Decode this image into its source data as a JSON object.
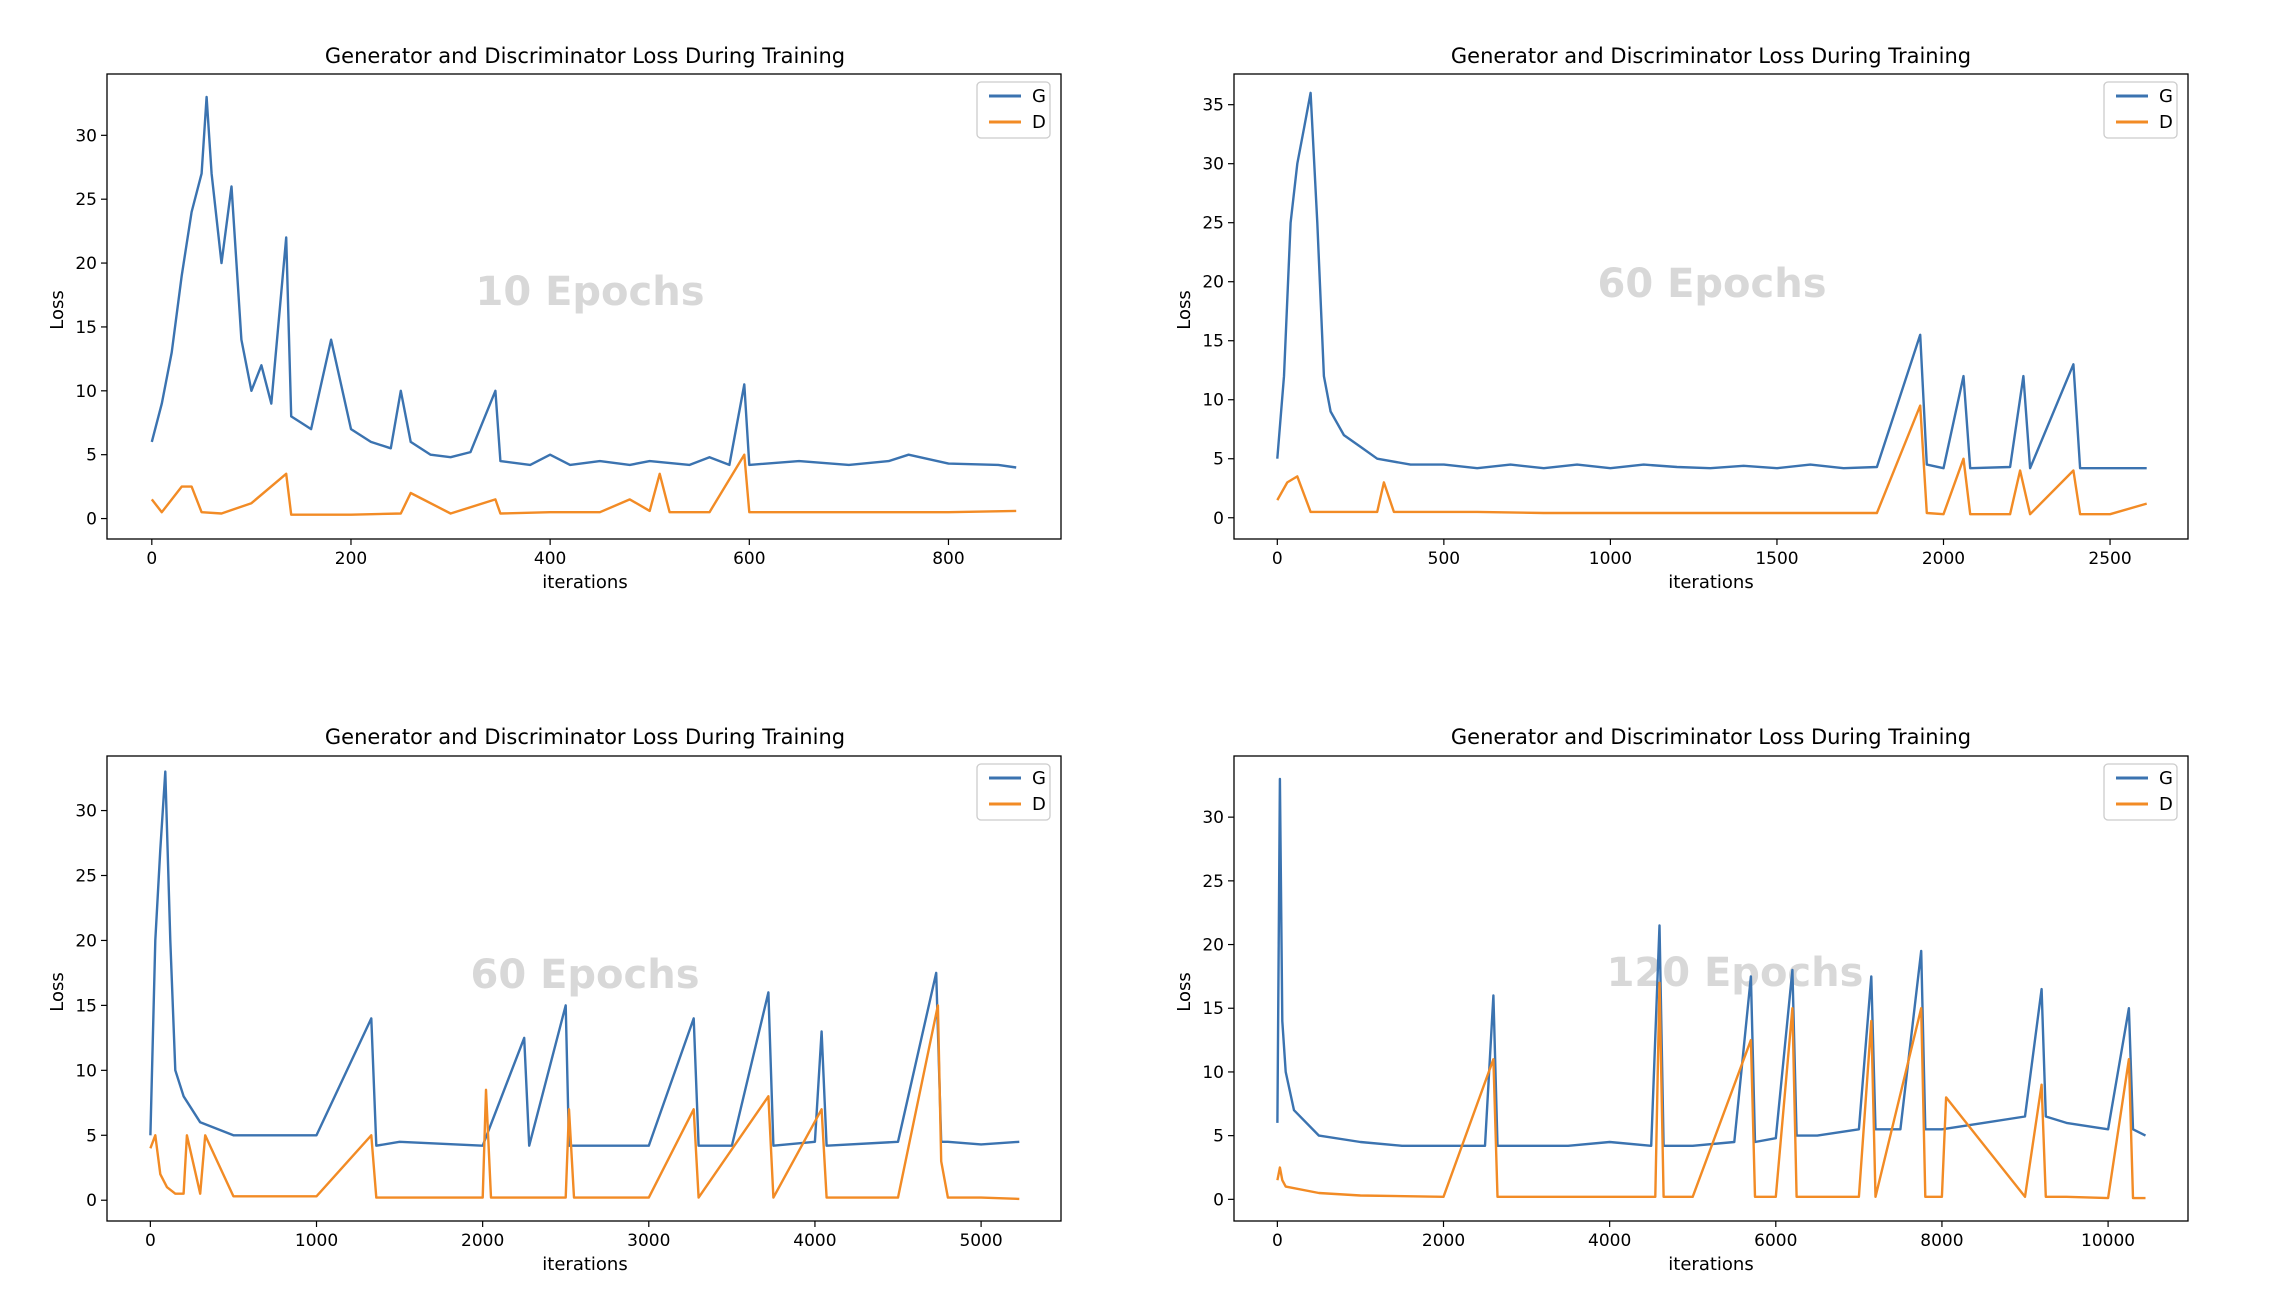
{
  "colors": {
    "G": "#3b73b0",
    "D": "#f28b25",
    "watermark": "#d8d8d8"
  },
  "chart_data": [
    {
      "type": "line",
      "title": "Generator and Discriminator Loss During Training",
      "xlabel": "iterations",
      "ylabel": "Loss",
      "watermark": "10 Epochs",
      "xlim": [
        -45,
        913
      ],
      "ylim": [
        -1.6,
        34.8
      ],
      "xticks": [
        0,
        200,
        400,
        600,
        800
      ],
      "yticks": [
        0,
        5,
        10,
        15,
        20,
        25,
        30
      ],
      "legend": "top-right",
      "grid": false,
      "series": [
        {
          "name": "G",
          "x": [
            0,
            10,
            20,
            30,
            40,
            50,
            55,
            60,
            70,
            80,
            90,
            100,
            110,
            120,
            135,
            140,
            150,
            160,
            180,
            200,
            220,
            240,
            250,
            260,
            280,
            300,
            320,
            345,
            350,
            380,
            400,
            420,
            450,
            480,
            500,
            540,
            560,
            580,
            595,
            600,
            650,
            700,
            740,
            760,
            800,
            850,
            868
          ],
          "y": [
            6,
            9,
            13,
            19,
            24,
            27,
            33,
            27,
            20,
            26,
            14,
            10,
            12,
            9,
            22,
            8,
            7.5,
            7,
            14,
            7,
            6,
            5.5,
            10,
            6,
            5,
            4.8,
            5.2,
            10,
            4.5,
            4.2,
            5,
            4.2,
            4.5,
            4.2,
            4.5,
            4.2,
            4.8,
            4.2,
            10.5,
            4.2,
            4.5,
            4.2,
            4.5,
            5,
            4.3,
            4.2,
            4
          ]
        },
        {
          "name": "D",
          "x": [
            0,
            10,
            30,
            40,
            50,
            70,
            100,
            135,
            140,
            150,
            200,
            250,
            260,
            300,
            345,
            350,
            400,
            450,
            480,
            500,
            510,
            520,
            560,
            595,
            600,
            650,
            700,
            800,
            868
          ],
          "y": [
            1.5,
            0.5,
            2.5,
            2.5,
            0.5,
            0.4,
            1.2,
            3.5,
            0.3,
            0.3,
            0.3,
            0.4,
            2,
            0.4,
            1.5,
            0.4,
            0.5,
            0.5,
            1.5,
            0.6,
            3.5,
            0.5,
            0.5,
            5,
            0.5,
            0.5,
            0.5,
            0.5,
            0.6
          ]
        }
      ]
    },
    {
      "type": "line",
      "title": "Generator and Discriminator Loss During Training",
      "xlabel": "iterations",
      "ylabel": "Loss",
      "watermark": "60 Epochs",
      "xlim": [
        -130,
        2734
      ],
      "ylim": [
        -1.8,
        37.6
      ],
      "xticks": [
        0,
        500,
        1000,
        1500,
        2000,
        2500
      ],
      "yticks": [
        0,
        5,
        10,
        15,
        20,
        25,
        30,
        35
      ],
      "legend": "top-right",
      "grid": false,
      "series": [
        {
          "name": "G",
          "x": [
            0,
            20,
            40,
            60,
            80,
            100,
            120,
            140,
            160,
            200,
            250,
            300,
            400,
            500,
            600,
            700,
            800,
            900,
            1000,
            1100,
            1200,
            1300,
            1400,
            1500,
            1600,
            1700,
            1800,
            1930,
            1950,
            2000,
            2060,
            2080,
            2200,
            2240,
            2260,
            2390,
            2410,
            2500,
            2610
          ],
          "y": [
            5,
            12,
            25,
            30,
            33,
            36,
            25,
            12,
            9,
            7,
            6,
            5,
            4.5,
            4.5,
            4.2,
            4.5,
            4.2,
            4.5,
            4.2,
            4.5,
            4.3,
            4.2,
            4.4,
            4.2,
            4.5,
            4.2,
            4.3,
            15.5,
            4.5,
            4.2,
            12,
            4.2,
            4.3,
            12,
            4.2,
            13,
            4.2,
            4.2,
            4.2
          ]
        },
        {
          "name": "D",
          "x": [
            0,
            30,
            60,
            100,
            200,
            300,
            320,
            350,
            400,
            500,
            600,
            800,
            1000,
            1200,
            1400,
            1600,
            1800,
            1930,
            1950,
            2000,
            2060,
            2080,
            2200,
            2230,
            2260,
            2390,
            2410,
            2500,
            2610
          ],
          "y": [
            1.5,
            3,
            3.5,
            0.5,
            0.5,
            0.5,
            3,
            0.5,
            0.5,
            0.5,
            0.5,
            0.4,
            0.4,
            0.4,
            0.4,
            0.4,
            0.4,
            9.5,
            0.4,
            0.3,
            5,
            0.3,
            0.3,
            4,
            0.3,
            4,
            0.3,
            0.3,
            1.2
          ]
        }
      ]
    },
    {
      "type": "line",
      "title": "Generator and Discriminator Loss During Training",
      "xlabel": "iterations",
      "ylabel": "Loss",
      "watermark": "60 Epochs",
      "xlim": [
        -261,
        5481
      ],
      "ylim": [
        -1.6,
        34.2
      ],
      "xticks": [
        0,
        1000,
        2000,
        3000,
        4000,
        5000
      ],
      "yticks": [
        0,
        5,
        10,
        15,
        20,
        25,
        30
      ],
      "legend": "top-right",
      "grid": false,
      "series": [
        {
          "name": "G",
          "x": [
            0,
            30,
            60,
            90,
            120,
            150,
            200,
            300,
            500,
            1000,
            1330,
            1360,
            1500,
            2000,
            2250,
            2280,
            2500,
            2520,
            3000,
            3270,
            3300,
            3500,
            3720,
            3750,
            4000,
            4040,
            4070,
            4500,
            4730,
            4760,
            4800,
            5000,
            5230
          ],
          "y": [
            5,
            20,
            27,
            33,
            20,
            10,
            8,
            6,
            5,
            5,
            14,
            4.2,
            4.5,
            4.2,
            12.5,
            4.2,
            15,
            4.2,
            4.2,
            14,
            4.2,
            4.2,
            16,
            4.2,
            4.5,
            13,
            4.2,
            4.5,
            17.5,
            4.5,
            4.5,
            4.3,
            4.5
          ]
        },
        {
          "name": "D",
          "x": [
            0,
            30,
            60,
            100,
            150,
            200,
            220,
            300,
            330,
            500,
            1000,
            1330,
            1360,
            2000,
            2020,
            2050,
            2500,
            2520,
            2550,
            3000,
            3270,
            3300,
            3720,
            3750,
            4040,
            4070,
            4500,
            4740,
            4760,
            4800,
            5000,
            5230
          ],
          "y": [
            4,
            5,
            2,
            1,
            0.5,
            0.5,
            5,
            0.5,
            5,
            0.3,
            0.3,
            5,
            0.2,
            0.2,
            8.5,
            0.2,
            0.2,
            7,
            0.2,
            0.2,
            7,
            0.2,
            8,
            0.2,
            7,
            0.2,
            0.2,
            15,
            3,
            0.2,
            0.2,
            0.1
          ]
        }
      ]
    },
    {
      "type": "line",
      "title": "Generator and Discriminator Loss During Training",
      "xlabel": "iterations",
      "ylabel": "Loss",
      "watermark": "120 Epochs",
      "xlim": [
        -522,
        10962
      ],
      "ylim": [
        -1.7,
        34.8
      ],
      "xticks": [
        0,
        2000,
        4000,
        6000,
        8000,
        10000
      ],
      "yticks": [
        0,
        5,
        10,
        15,
        20,
        25,
        30
      ],
      "legend": "top-right",
      "grid": false,
      "series": [
        {
          "name": "G",
          "x": [
            0,
            30,
            60,
            100,
            200,
            500,
            1000,
            1500,
            2000,
            2500,
            2600,
            2650,
            3000,
            3500,
            4000,
            4500,
            4600,
            4650,
            5000,
            5500,
            5700,
            5750,
            6000,
            6200,
            6250,
            6500,
            7000,
            7150,
            7200,
            7500,
            7750,
            7800,
            8000,
            8500,
            9000,
            9200,
            9250,
            9500,
            10000,
            10250,
            10300,
            10450
          ],
          "y": [
            6,
            33,
            14,
            10,
            7,
            5,
            4.5,
            4.2,
            4.2,
            4.2,
            16,
            4.2,
            4.2,
            4.2,
            4.5,
            4.2,
            21.5,
            4.2,
            4.2,
            4.5,
            17.5,
            4.5,
            4.8,
            18,
            5,
            5,
            5.5,
            17.5,
            5.5,
            5.5,
            19.5,
            5.5,
            5.5,
            6,
            6.5,
            16.5,
            6.5,
            6,
            5.5,
            15,
            5.5,
            5
          ]
        },
        {
          "name": "D",
          "x": [
            0,
            30,
            60,
            100,
            500,
            1000,
            2000,
            2600,
            2650,
            3000,
            3500,
            4000,
            4550,
            4600,
            4650,
            5000,
            5700,
            5750,
            6000,
            6200,
            6250,
            7000,
            7150,
            7200,
            7750,
            7800,
            8000,
            8050,
            9000,
            9200,
            9250,
            9500,
            10000,
            10250,
            10300,
            10450
          ],
          "y": [
            1.5,
            2.5,
            1.5,
            1,
            0.5,
            0.3,
            0.2,
            11,
            0.2,
            0.2,
            0.2,
            0.2,
            0.2,
            17,
            0.2,
            0.2,
            12.5,
            0.2,
            0.2,
            15,
            0.2,
            0.2,
            14,
            0.2,
            15,
            0.2,
            0.2,
            8,
            0.2,
            9,
            0.2,
            0.2,
            0.1,
            11,
            0.1,
            0.1
          ]
        }
      ]
    }
  ]
}
